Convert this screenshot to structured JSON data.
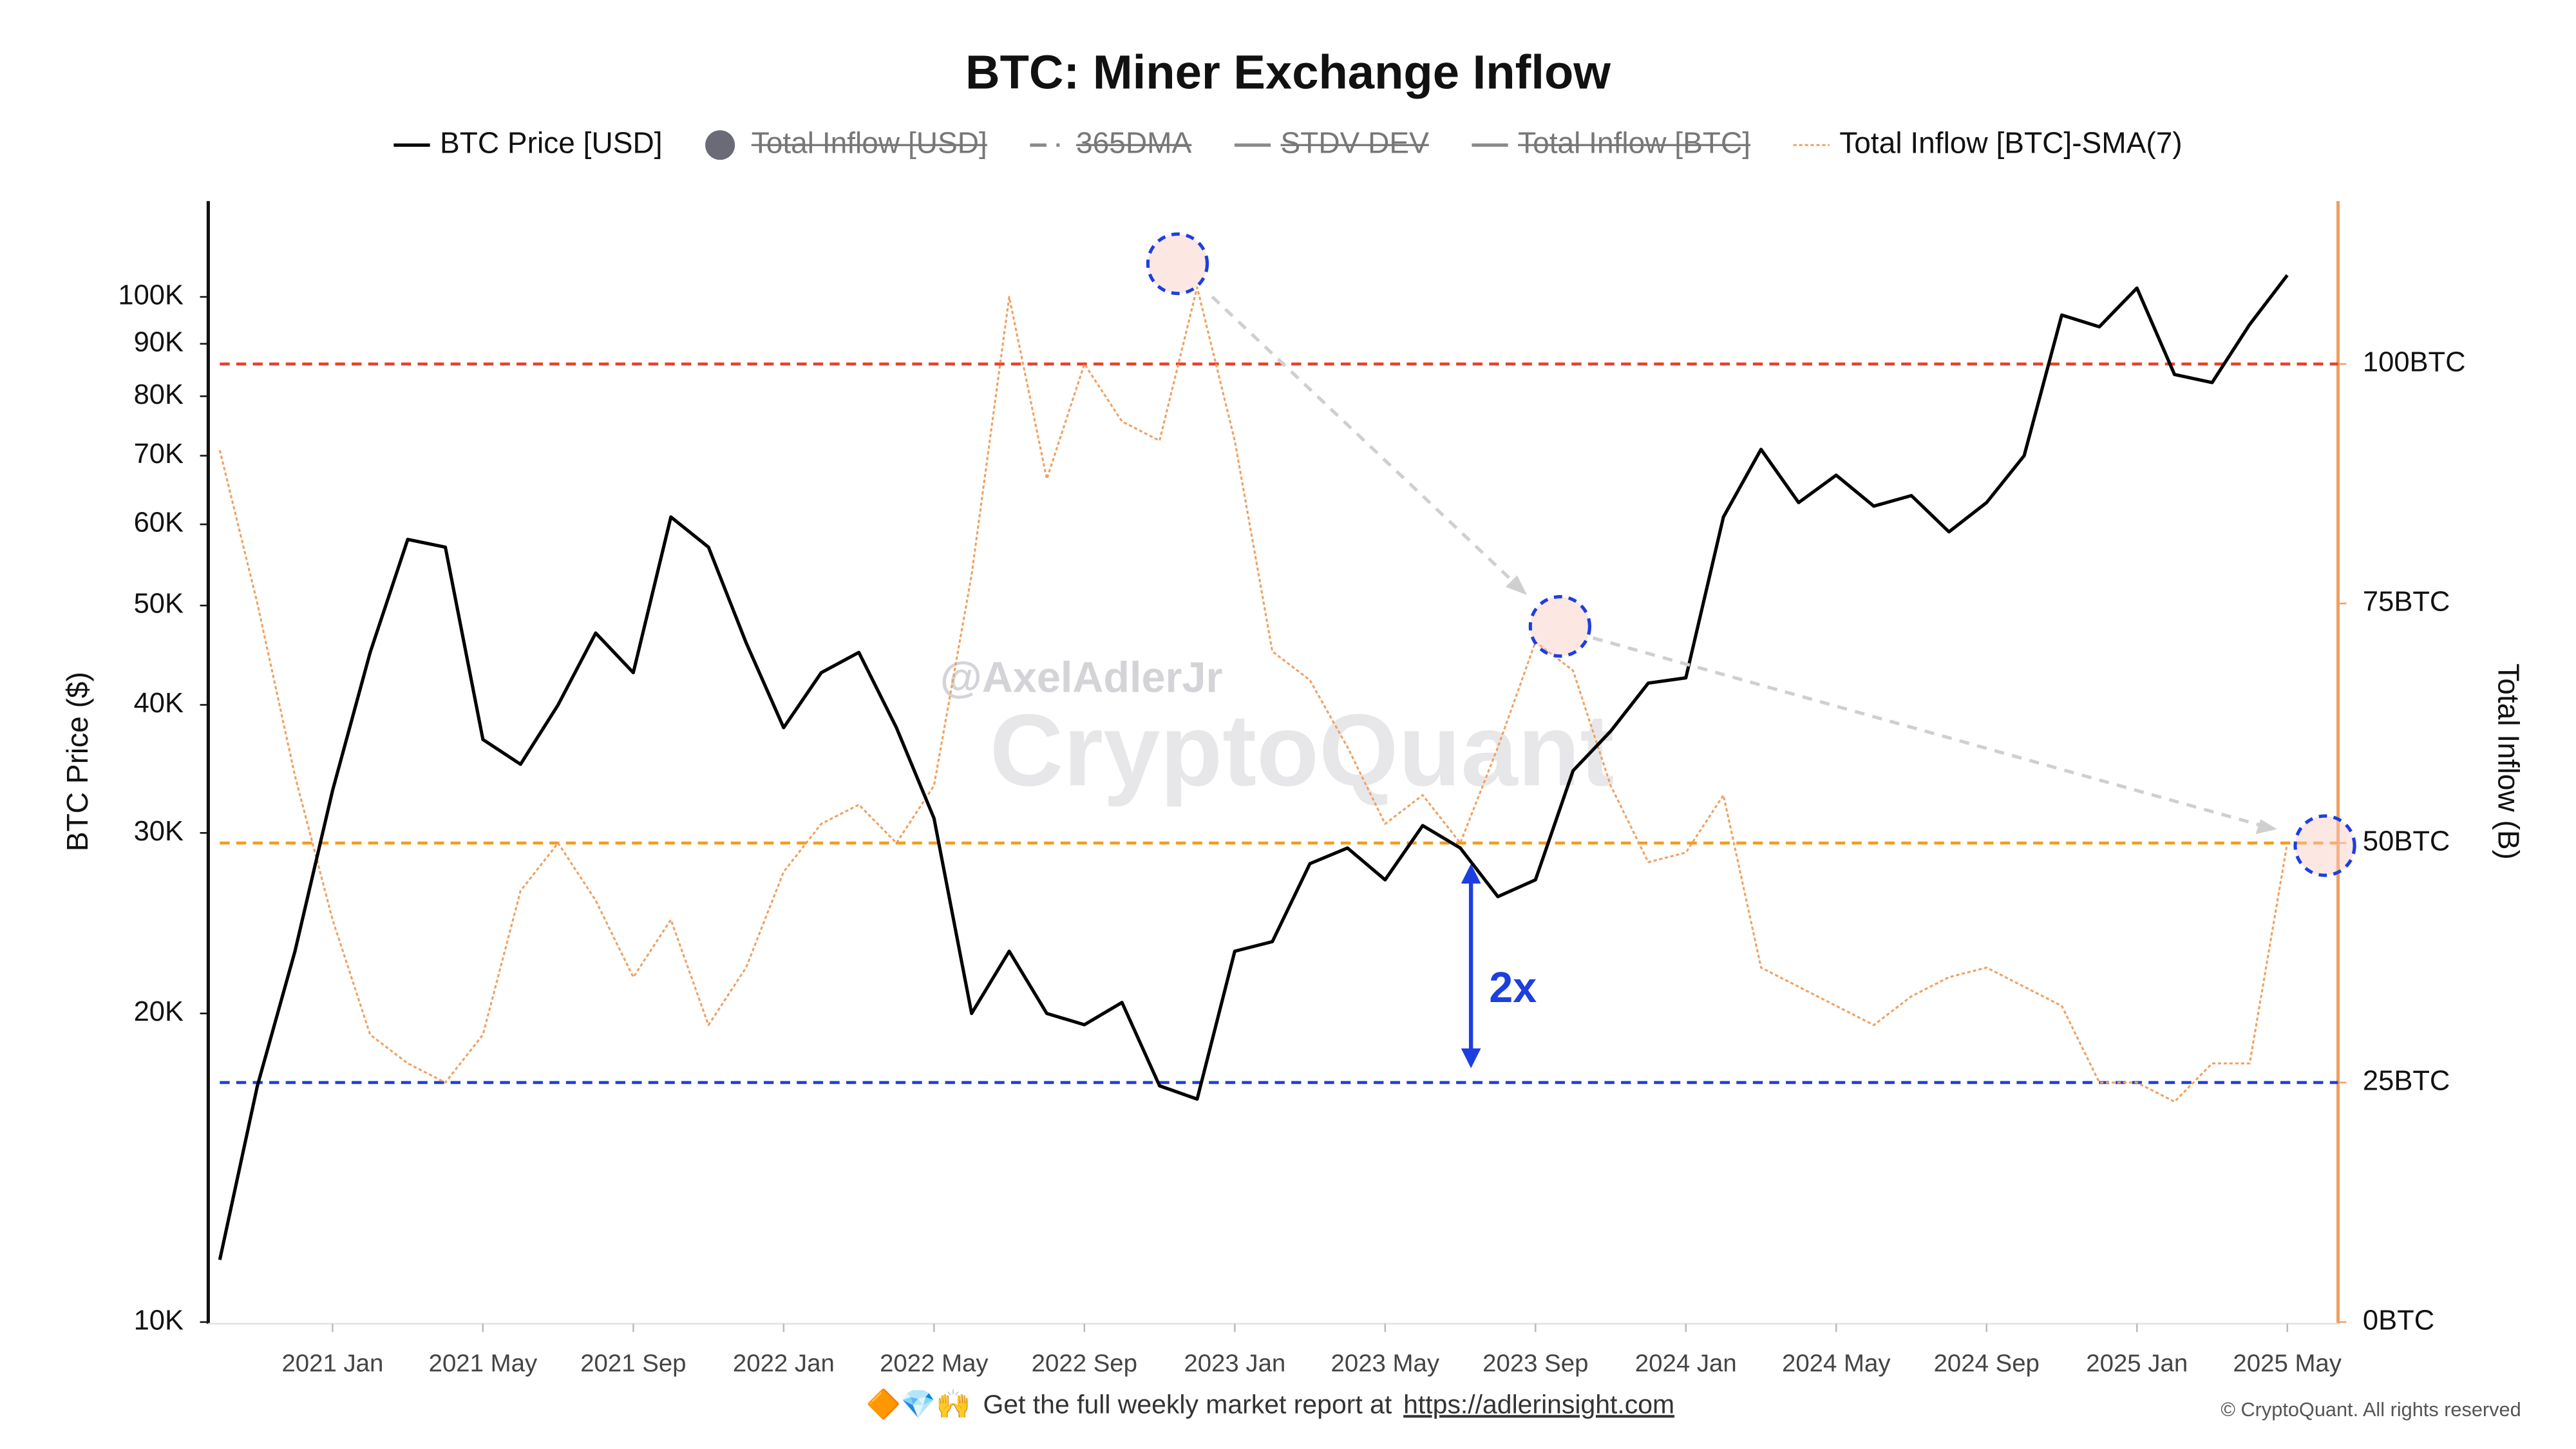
{
  "chart_data": {
    "type": "line",
    "title": "BTC: Miner Exchange Inflow",
    "y_label": "BTC Price ($)",
    "y2_label": "Total Inflow (B)",
    "log_y": true,
    "grid": false,
    "legend": "top",
    "x": [
      "2020-10",
      "2020-11",
      "2020-12",
      "2021-01",
      "2021-02",
      "2021-03",
      "2021-04",
      "2021-05",
      "2021-06",
      "2021-07",
      "2021-08",
      "2021-09",
      "2021-10",
      "2021-11",
      "2021-12",
      "2022-01",
      "2022-02",
      "2022-03",
      "2022-04",
      "2022-05",
      "2022-06",
      "2022-07",
      "2022-08",
      "2022-09",
      "2022-10",
      "2022-11",
      "2022-12",
      "2023-01",
      "2023-02",
      "2023-03",
      "2023-04",
      "2023-05",
      "2023-06",
      "2023-07",
      "2023-08",
      "2023-09",
      "2023-10",
      "2023-11",
      "2023-12",
      "2024-01",
      "2024-02",
      "2024-03",
      "2024-04",
      "2024-05",
      "2024-06",
      "2024-07",
      "2024-08",
      "2024-09",
      "2024-10",
      "2024-11",
      "2024-12",
      "2025-01",
      "2025-02",
      "2025-03",
      "2025-04",
      "2025-05"
    ],
    "xlim": [
      "2020-10",
      "2025-06"
    ],
    "xticks": [
      {
        "value": "2021-01",
        "label": "2021 Jan"
      },
      {
        "value": "2021-05",
        "label": "2021 May"
      },
      {
        "value": "2021-09",
        "label": "2021 Sep"
      },
      {
        "value": "2022-01",
        "label": "2022 Jan"
      },
      {
        "value": "2022-05",
        "label": "2022 May"
      },
      {
        "value": "2022-09",
        "label": "2022 Sep"
      },
      {
        "value": "2023-01",
        "label": "2023 Jan"
      },
      {
        "value": "2023-05",
        "label": "2023 May"
      },
      {
        "value": "2023-09",
        "label": "2023 Sep"
      },
      {
        "value": "2024-01",
        "label": "2024 Jan"
      },
      {
        "value": "2024-05",
        "label": "2024 May"
      },
      {
        "value": "2024-09",
        "label": "2024 Sep"
      },
      {
        "value": "2025-01",
        "label": "2025 Jan"
      },
      {
        "value": "2025-05",
        "label": "2025 May"
      }
    ],
    "ylim": [
      10000,
      124000
    ],
    "yticks": [
      {
        "value": 10000,
        "label": "10K"
      },
      {
        "value": 20000,
        "label": "20K"
      },
      {
        "value": 30000,
        "label": "30K"
      },
      {
        "value": 40000,
        "label": "40K"
      },
      {
        "value": 50000,
        "label": "50K"
      },
      {
        "value": 60000,
        "label": "60K"
      },
      {
        "value": 70000,
        "label": "70K"
      },
      {
        "value": 80000,
        "label": "80K"
      },
      {
        "value": 90000,
        "label": "90K"
      },
      {
        "value": 100000,
        "label": "100K"
      }
    ],
    "y2lim": [
      0,
      117
    ],
    "y2ticks": [
      {
        "value": 0,
        "label": "0BTC"
      },
      {
        "value": 25,
        "label": "25BTC"
      },
      {
        "value": 50,
        "label": "50BTC"
      },
      {
        "value": 75,
        "label": "75BTC"
      },
      {
        "value": 100,
        "label": "100BTC"
      }
    ],
    "series": [
      {
        "name": "BTC Price [USD]",
        "color": "#000000",
        "marker": "line",
        "values": [
          11500,
          17000,
          23000,
          33000,
          45000,
          58000,
          57000,
          37000,
          35000,
          40000,
          47000,
          43000,
          61000,
          57000,
          46000,
          38000,
          43000,
          45000,
          38000,
          31000,
          20000,
          23000,
          20000,
          19500,
          20500,
          17000,
          16500,
          23000,
          23500,
          28000,
          29000,
          27000,
          30500,
          29000,
          26000,
          27000,
          34500,
          37700,
          42000,
          42500,
          61000,
          71000,
          63000,
          67000,
          62500,
          64000,
          59000,
          63000,
          70000,
          96000,
          93500,
          102000,
          84000,
          82500,
          94000,
          105000
        ]
      },
      {
        "name": "Total Inflow [USD]",
        "color": "#6b6b78",
        "marker": "dot",
        "hidden": true
      },
      {
        "name": "365DMA",
        "color": "#8a8a8a",
        "marker": "dashdot",
        "hidden": true
      },
      {
        "name": "STDV DEV",
        "color": "#8a8a8a",
        "marker": "line",
        "hidden": true
      },
      {
        "name": "Total Inflow [BTC]",
        "color": "#8a8a8a",
        "marker": "line",
        "hidden": true
      },
      {
        "name": "Total Inflow [BTC]-SMA(7)",
        "color": "#f0a060",
        "marker": "dashed",
        "axis": "y2",
        "values": [
          91,
          75,
          57,
          42,
          30,
          27,
          25,
          30,
          45,
          50,
          44,
          36,
          42,
          31,
          37,
          47,
          52,
          54,
          50,
          56,
          78,
          107,
          88,
          100,
          94,
          92,
          108,
          92,
          70,
          67,
          60,
          52,
          55,
          50,
          60,
          71,
          68,
          56,
          48,
          49,
          55,
          37,
          35,
          33,
          31,
          34,
          36,
          37,
          35,
          33,
          25,
          25,
          23,
          27,
          27,
          50
        ]
      }
    ],
    "reference_lines": [
      {
        "axis": "y2",
        "value": 100,
        "color": "#e8412c"
      },
      {
        "axis": "y2",
        "value": 50,
        "color": "#f39c1f"
      },
      {
        "axis": "y2",
        "value": 25,
        "color": "#1d3fe0"
      }
    ],
    "annotation": "2x",
    "watermark_author": "@AxelAdlerJr",
    "watermark_brand": "CryptoQuant",
    "footer_icons": "🔶💎🙌",
    "footer_text": "Get the full weekly market report at",
    "footer_link": "https://adlerinsight.com",
    "copyright": "© CryptoQuant. All rights reserved"
  }
}
